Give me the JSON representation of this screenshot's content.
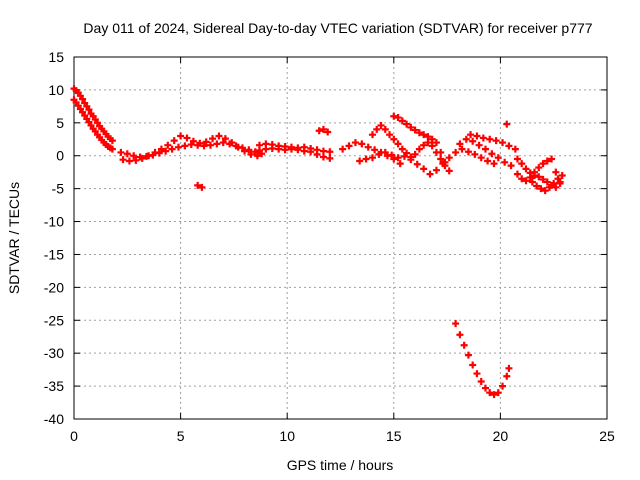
{
  "chart_data": {
    "type": "scatter",
    "title": "Day 011 of 2024, Sidereal Day-to-day VTEC variation (SDTVAR) for receiver p777",
    "xlabel": "GPS time / hours",
    "ylabel": "SDTVAR / TECUs",
    "xlim": [
      0,
      25
    ],
    "ylim": [
      -40,
      15
    ],
    "x_ticks": [
      "0",
      "5",
      "10",
      "15",
      "20",
      "25"
    ],
    "x_tick_values": [
      0,
      5,
      10,
      15,
      20,
      25
    ],
    "y_ticks": [
      "15",
      "10",
      "5",
      "0",
      "-5",
      "-10",
      "-15",
      "-20",
      "-25",
      "-30",
      "-35",
      "-40"
    ],
    "y_tick_values": [
      15,
      10,
      5,
      0,
      -5,
      -10,
      -15,
      -20,
      -25,
      -30,
      -35,
      -40
    ],
    "grid": true,
    "marker": "+",
    "series_color": "#ff0000",
    "series": [
      {
        "name": "trace-1",
        "points": [
          [
            0.0,
            10.2
          ],
          [
            0.1,
            9.9
          ],
          [
            0.2,
            9.6
          ],
          [
            0.3,
            9.1
          ],
          [
            0.4,
            8.6
          ],
          [
            0.5,
            8.0
          ],
          [
            0.6,
            7.5
          ],
          [
            0.7,
            7.0
          ],
          [
            0.8,
            6.4
          ],
          [
            0.9,
            6.0
          ],
          [
            1.0,
            5.5
          ],
          [
            1.1,
            5.0
          ],
          [
            1.2,
            4.5
          ],
          [
            1.3,
            4.1
          ],
          [
            1.4,
            3.7
          ],
          [
            1.5,
            3.3
          ],
          [
            1.6,
            2.9
          ],
          [
            1.7,
            2.6
          ],
          [
            1.8,
            2.3
          ]
        ]
      },
      {
        "name": "trace-2",
        "points": [
          [
            0.0,
            8.5
          ],
          [
            0.1,
            8.1
          ],
          [
            0.2,
            7.6
          ],
          [
            0.3,
            7.1
          ],
          [
            0.4,
            6.6
          ],
          [
            0.5,
            6.1
          ],
          [
            0.6,
            5.6
          ],
          [
            0.7,
            5.1
          ],
          [
            0.8,
            4.6
          ],
          [
            0.9,
            4.1
          ],
          [
            1.0,
            3.7
          ],
          [
            1.1,
            3.2
          ],
          [
            1.2,
            2.8
          ],
          [
            1.3,
            2.4
          ],
          [
            1.4,
            2.0
          ],
          [
            1.5,
            1.7
          ],
          [
            1.6,
            1.4
          ],
          [
            1.7,
            1.2
          ],
          [
            1.8,
            1.0
          ]
        ]
      },
      {
        "name": "trace-3",
        "points": [
          [
            2.2,
            0.5
          ],
          [
            2.5,
            0.3
          ],
          [
            2.8,
            0.0
          ],
          [
            3.1,
            -0.2
          ],
          [
            3.4,
            -0.1
          ],
          [
            3.7,
            0.1
          ],
          [
            4.0,
            0.4
          ],
          [
            4.3,
            0.7
          ],
          [
            4.6,
            1.0
          ],
          [
            4.9,
            1.3
          ],
          [
            5.2,
            1.5
          ],
          [
            5.5,
            1.7
          ],
          [
            5.8,
            1.6
          ],
          [
            6.1,
            1.5
          ],
          [
            6.4,
            1.6
          ],
          [
            6.7,
            1.8
          ],
          [
            7.0,
            2.0
          ],
          [
            7.3,
            1.8
          ],
          [
            7.6,
            1.5
          ],
          [
            7.9,
            1.2
          ],
          [
            8.2,
            0.9
          ],
          [
            8.5,
            0.6
          ],
          [
            8.8,
            0.3
          ]
        ]
      },
      {
        "name": "trace-4",
        "points": [
          [
            2.3,
            -0.6
          ],
          [
            2.6,
            -0.8
          ],
          [
            2.9,
            -0.7
          ],
          [
            3.2,
            -0.4
          ],
          [
            3.5,
            0.0
          ],
          [
            3.8,
            0.5
          ],
          [
            4.1,
            1.0
          ],
          [
            4.4,
            1.6
          ],
          [
            4.7,
            2.3
          ],
          [
            5.0,
            3.0
          ],
          [
            5.3,
            2.7
          ],
          [
            5.6,
            2.2
          ],
          [
            5.9,
            1.9
          ],
          [
            6.2,
            2.1
          ],
          [
            6.5,
            2.6
          ],
          [
            6.8,
            3.0
          ],
          [
            7.1,
            2.6
          ],
          [
            7.4,
            2.0
          ],
          [
            7.7,
            1.3
          ],
          [
            8.0,
            0.7
          ],
          [
            8.3,
            0.2
          ],
          [
            8.6,
            0.0
          ]
        ]
      },
      {
        "name": "trace-5",
        "points": [
          [
            8.7,
            0.8
          ],
          [
            9.0,
            1.0
          ],
          [
            9.3,
            1.1
          ],
          [
            9.6,
            1.0
          ],
          [
            9.9,
            0.9
          ],
          [
            10.2,
            1.0
          ],
          [
            10.5,
            1.2
          ],
          [
            10.8,
            1.3
          ],
          [
            11.1,
            1.1
          ],
          [
            11.4,
            0.9
          ],
          [
            11.7,
            0.7
          ],
          [
            12.0,
            0.6
          ]
        ]
      },
      {
        "name": "trace-6",
        "points": [
          [
            8.7,
            1.6
          ],
          [
            9.0,
            1.8
          ],
          [
            9.3,
            1.7
          ],
          [
            9.6,
            1.5
          ],
          [
            9.9,
            1.4
          ],
          [
            10.2,
            1.3
          ],
          [
            10.5,
            0.9
          ],
          [
            10.8,
            0.7
          ],
          [
            11.1,
            0.6
          ],
          [
            11.4,
            0.2
          ],
          [
            11.7,
            -0.2
          ],
          [
            12.0,
            -0.4
          ]
        ]
      },
      {
        "name": "trace-7",
        "points": [
          [
            11.5,
            3.8
          ],
          [
            11.7,
            4.0
          ],
          [
            11.9,
            3.6
          ]
        ]
      },
      {
        "name": "trace-8",
        "points": [
          [
            12.6,
            1.0
          ],
          [
            12.9,
            1.5
          ],
          [
            13.2,
            2.0
          ],
          [
            13.5,
            1.8
          ],
          [
            13.8,
            1.3
          ],
          [
            14.1,
            0.9
          ],
          [
            14.4,
            0.5
          ],
          [
            14.7,
            0.0
          ],
          [
            15.0,
            -0.5
          ],
          [
            15.3,
            -1.2
          ]
        ]
      },
      {
        "name": "trace-9",
        "points": [
          [
            13.4,
            -0.8
          ],
          [
            13.7,
            -0.5
          ],
          [
            14.0,
            -0.3
          ],
          [
            14.3,
            0.2
          ],
          [
            14.6,
            0.5
          ],
          [
            14.9,
            0.1
          ],
          [
            15.2,
            -0.3
          ],
          [
            15.5,
            -0.1
          ],
          [
            15.8,
            -0.6
          ],
          [
            16.1,
            -1.3
          ],
          [
            16.4,
            -2.0
          ],
          [
            16.7,
            -2.8
          ],
          [
            17.0,
            -2.2
          ],
          [
            17.3,
            -1.2
          ],
          [
            17.6,
            -0.3
          ],
          [
            17.9,
            0.5
          ],
          [
            18.2,
            1.0
          ],
          [
            18.5,
            0.6
          ],
          [
            18.8,
            0.2
          ],
          [
            19.1,
            -0.3
          ],
          [
            19.4,
            -0.8
          ],
          [
            19.7,
            -1.2
          ]
        ]
      },
      {
        "name": "trace-10",
        "points": [
          [
            14.0,
            3.2
          ],
          [
            14.2,
            4.0
          ],
          [
            14.4,
            4.6
          ],
          [
            14.6,
            4.0
          ],
          [
            14.8,
            3.2
          ]
        ]
      },
      {
        "name": "trace-11",
        "points": [
          [
            15.0,
            6.0
          ],
          [
            15.2,
            5.8
          ],
          [
            15.4,
            5.3
          ],
          [
            15.6,
            4.8
          ],
          [
            15.8,
            4.3
          ],
          [
            16.0,
            3.9
          ],
          [
            16.2,
            3.5
          ],
          [
            16.4,
            3.2
          ],
          [
            16.6,
            2.9
          ],
          [
            16.8,
            2.5
          ],
          [
            17.0,
            2.0
          ],
          [
            17.2,
            0.5
          ],
          [
            17.4,
            -1.0
          ],
          [
            17.6,
            -2.3
          ]
        ]
      },
      {
        "name": "trace-12",
        "points": [
          [
            15.0,
            2.5
          ],
          [
            15.2,
            1.8
          ],
          [
            15.4,
            1.0
          ],
          [
            15.6,
            0.4
          ],
          [
            15.8,
            -0.2
          ],
          [
            16.0,
            0.2
          ],
          [
            16.2,
            1.0
          ],
          [
            16.4,
            1.6
          ],
          [
            16.6,
            2.0
          ],
          [
            16.8,
            1.5
          ],
          [
            17.0,
            0.5
          ],
          [
            17.2,
            -0.5
          ],
          [
            17.4,
            -1.5
          ]
        ]
      },
      {
        "name": "trace-13",
        "points": [
          [
            18.1,
            1.8
          ],
          [
            18.4,
            2.5
          ],
          [
            18.7,
            2.2
          ],
          [
            19.0,
            1.6
          ],
          [
            19.3,
            1.0
          ],
          [
            19.6,
            0.3
          ],
          [
            19.9,
            -0.3
          ],
          [
            20.2,
            -1.0
          ],
          [
            20.5,
            -1.5
          ]
        ]
      },
      {
        "name": "trace-14",
        "points": [
          [
            18.6,
            3.2
          ],
          [
            18.9,
            3.0
          ],
          [
            19.2,
            2.7
          ],
          [
            19.5,
            2.5
          ],
          [
            19.8,
            2.3
          ],
          [
            20.1,
            2.0
          ],
          [
            20.4,
            1.5
          ],
          [
            20.7,
            1.0
          ]
        ]
      },
      {
        "name": "trace-15",
        "points": [
          [
            20.3,
            4.8
          ]
        ]
      },
      {
        "name": "trace-16",
        "points": [
          [
            20.8,
            -0.5
          ],
          [
            21.0,
            -1.2
          ],
          [
            21.2,
            -2.0
          ],
          [
            21.4,
            -2.6
          ],
          [
            21.6,
            -3.0
          ],
          [
            21.8,
            -3.2
          ],
          [
            22.0,
            -3.6
          ],
          [
            22.2,
            -4.0
          ],
          [
            22.4,
            -4.5
          ],
          [
            22.6,
            -4.8
          ],
          [
            22.8,
            -4.0
          ]
        ]
      },
      {
        "name": "trace-17",
        "points": [
          [
            20.8,
            -2.8
          ],
          [
            21.0,
            -3.5
          ],
          [
            21.2,
            -3.8
          ],
          [
            21.4,
            -3.3
          ],
          [
            21.6,
            -2.5
          ],
          [
            21.8,
            -1.8
          ],
          [
            22.0,
            -1.2
          ],
          [
            22.2,
            -0.8
          ],
          [
            22.4,
            -0.5
          ],
          [
            22.6,
            -2.5
          ],
          [
            22.8,
            -4.2
          ]
        ]
      },
      {
        "name": "trace-18",
        "points": [
          [
            21.5,
            -4.0
          ],
          [
            21.7,
            -4.6
          ],
          [
            21.9,
            -5.0
          ],
          [
            22.1,
            -5.3
          ],
          [
            22.3,
            -4.8
          ],
          [
            22.5,
            -4.2
          ],
          [
            22.7,
            -3.5
          ],
          [
            22.9,
            -3.0
          ]
        ]
      },
      {
        "name": "trace-19",
        "points": [
          [
            5.8,
            -4.5
          ],
          [
            6.0,
            -4.8
          ]
        ]
      },
      {
        "name": "trace-20",
        "points": [
          [
            17.9,
            -25.5
          ],
          [
            18.1,
            -27.2
          ],
          [
            18.3,
            -28.8
          ],
          [
            18.5,
            -30.3
          ],
          [
            18.7,
            -31.8
          ],
          [
            18.9,
            -33.1
          ],
          [
            19.1,
            -34.3
          ],
          [
            19.3,
            -35.3
          ],
          [
            19.5,
            -36.0
          ],
          [
            19.7,
            -36.3
          ],
          [
            19.9,
            -36.0
          ],
          [
            20.1,
            -35.0
          ],
          [
            20.3,
            -33.5
          ],
          [
            20.4,
            -32.3
          ]
        ]
      }
    ]
  }
}
